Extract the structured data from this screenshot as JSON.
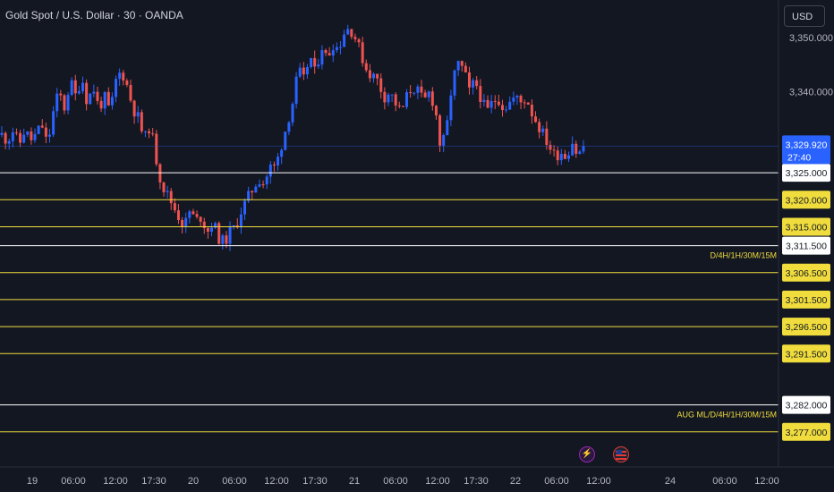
{
  "header": {
    "title": "Gold Spot / U.S. Dollar · 30 · OANDA",
    "currency": "USD"
  },
  "colors": {
    "background": "#131722",
    "up": "#2962ff",
    "down": "#ef5350",
    "axis_text": "#b2b5be",
    "yellow_level": "#f0dd3d",
    "white_level": "#ffffff"
  },
  "chart_data": {
    "type": "candlestick",
    "symbol": "Gold Spot / U.S. Dollar",
    "interval": "30",
    "source": "OANDA",
    "ylim": [
      3270.5,
      3357.0
    ],
    "y_ticks": [
      3350.0,
      3340.0
    ],
    "x_ticks": [
      "19",
      "06:00",
      "12:00",
      "17:30",
      "20",
      "06:00",
      "12:00",
      "17:30",
      "21",
      "06:00",
      "12:00",
      "17:30",
      "22",
      "06:00",
      "12:00",
      "24",
      "06:00",
      "12:00"
    ],
    "last_price": {
      "value": "3,329.920",
      "countdown": "27:40"
    },
    "levels": [
      {
        "price": 3325.0,
        "label": "3,325.000",
        "color": "white"
      },
      {
        "price": 3320.0,
        "label": "3,320.000",
        "color": "yellow"
      },
      {
        "price": 3315.0,
        "label": "3,315.000",
        "color": "yellow"
      },
      {
        "price": 3311.5,
        "label": "3,311.500",
        "color": "white"
      },
      {
        "price": 3306.5,
        "label": "3,306.500",
        "color": "yellow"
      },
      {
        "price": 3301.5,
        "label": "3,301.500",
        "color": "yellow"
      },
      {
        "price": 3296.5,
        "label": "3,296.500",
        "color": "yellow"
      },
      {
        "price": 3291.5,
        "label": "3,291.500",
        "color": "yellow"
      },
      {
        "price": 3282.0,
        "label": "3,282.000",
        "color": "white"
      },
      {
        "price": 3277.0,
        "label": "3,277.000",
        "color": "yellow"
      }
    ],
    "annotations": [
      {
        "text": "D/4H/1H/30M/15M",
        "price": 3311.5
      },
      {
        "text": "AUG ML/D/4H/1H/30M/15M",
        "price": 3282.0
      }
    ],
    "close_path": [
      3332,
      3331,
      3333,
      3330,
      3333,
      3331,
      3332,
      3334,
      3330,
      3336,
      3340,
      3337,
      3342,
      3339,
      3343,
      3338,
      3341,
      3337,
      3339,
      3336,
      3342,
      3344,
      3341,
      3337,
      3335,
      3331,
      3334,
      3328,
      3323,
      3321,
      3319,
      3317,
      3315,
      3318,
      3316,
      3317,
      3314,
      3316,
      3313,
      3312,
      3314,
      3315,
      3318,
      3320,
      3322,
      3324,
      3323,
      3326,
      3326,
      3330,
      3334,
      3338,
      3344,
      3342,
      3347,
      3343,
      3349,
      3346,
      3349,
      3348,
      3351,
      3352,
      3350,
      3347,
      3344,
      3343,
      3342,
      3339,
      3340,
      3338,
      3336,
      3339,
      3341,
      3340,
      3338,
      3340,
      3337,
      3329,
      3333,
      3342,
      3345,
      3344,
      3340,
      3342,
      3339,
      3336,
      3338,
      3339,
      3337,
      3338,
      3339,
      3338,
      3339,
      3336,
      3334,
      3332,
      3330,
      3328,
      3329,
      3328,
      3331,
      3328,
      3329.92
    ]
  }
}
